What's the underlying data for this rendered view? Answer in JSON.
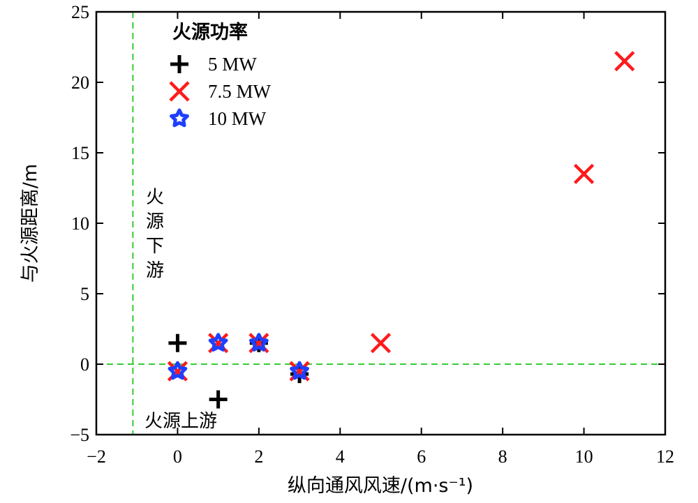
{
  "chart_data": {
    "type": "scatter",
    "title": "",
    "xlabel": "纵向通风风速/(m·s⁻¹)",
    "ylabel": "与火源距离/m",
    "xlim": [
      -2,
      12
    ],
    "ylim": [
      -5,
      25
    ],
    "xticks": [
      -2,
      0,
      2,
      4,
      6,
      8,
      10,
      12
    ],
    "yticks": [
      -5,
      0,
      5,
      10,
      15,
      20,
      25
    ],
    "xtick_labels": [
      "−2",
      "0",
      "2",
      "4",
      "6",
      "8",
      "10",
      "12"
    ],
    "ytick_labels": [
      "−5",
      "0",
      "5",
      "10",
      "15",
      "20",
      "25"
    ],
    "grid": false,
    "legend": {
      "title": "火源功率",
      "placement": "top-left"
    },
    "series": [
      {
        "name": "5 MW",
        "marker": "plus",
        "color": "#000000",
        "points": [
          [
            0,
            1.5
          ],
          [
            1,
            -2.5
          ],
          [
            2,
            1.5
          ],
          [
            3,
            -0.7
          ]
        ]
      },
      {
        "name": "7.5 MW",
        "marker": "x",
        "color": "#ff1a1a",
        "points": [
          [
            0,
            -0.5
          ],
          [
            1,
            1.5
          ],
          [
            2,
            1.5
          ],
          [
            3,
            -0.5
          ],
          [
            5,
            1.5
          ],
          [
            10,
            13.5
          ],
          [
            11,
            21.5
          ]
        ]
      },
      {
        "name": "10 MW",
        "marker": "star",
        "color": "#1f3fff",
        "points": [
          [
            0,
            -0.5
          ],
          [
            1,
            1.5
          ],
          [
            2,
            1.5
          ],
          [
            3,
            -0.5
          ]
        ]
      }
    ],
    "reference_lines": [
      {
        "orientation": "vertical",
        "value": -1.1,
        "color": "#33cc33",
        "style": "dashed"
      },
      {
        "orientation": "horizontal",
        "value": 0,
        "color": "#33cc33",
        "style": "dashed"
      }
    ],
    "annotations": [
      {
        "text": "火源下游",
        "orientation": "vertical"
      },
      {
        "text": "火源上游",
        "orientation": "horizontal"
      }
    ]
  }
}
